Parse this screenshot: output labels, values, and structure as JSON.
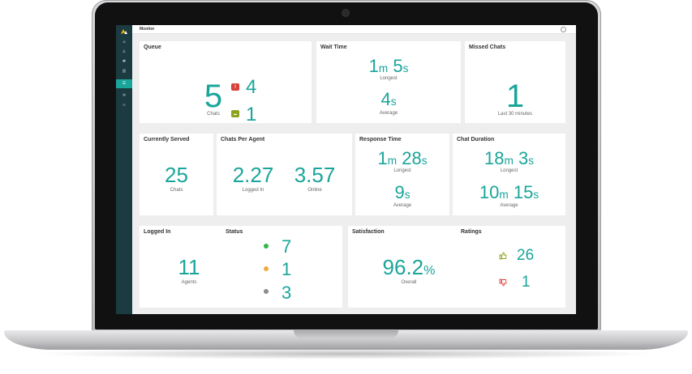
{
  "app": {
    "title": "Monitor"
  },
  "colors": {
    "accent": "#1aa59b",
    "sidebar": "#1b3b40",
    "alert": "#d9413c",
    "chat": "#8ea31d",
    "online": "#2db84b",
    "away": "#f2a93b",
    "offline": "#8c8c8c",
    "like": "#8ea31d",
    "dislike": "#d9413c"
  },
  "sidebar": {
    "items": [
      {
        "icon": "home-icon",
        "glyph": "⌂"
      },
      {
        "icon": "users-icon",
        "glyph": "♙"
      },
      {
        "icon": "gear-icon",
        "glyph": "✱"
      },
      {
        "icon": "chart-icon",
        "glyph": "▥"
      },
      {
        "icon": "monitor-icon",
        "glyph": "☰",
        "active": true
      },
      {
        "icon": "settings-icon",
        "glyph": "✲"
      },
      {
        "icon": "link-icon",
        "glyph": "∞"
      }
    ]
  },
  "queue": {
    "title": "Queue",
    "chats": "5",
    "chats_label": "Chats",
    "alert_count": "4",
    "chat_count": "1",
    "alert_glyph": "!",
    "chat_glyph": "▬"
  },
  "wait_time": {
    "title": "Wait Time",
    "longest_m": "1",
    "longest_s": "5",
    "longest_label": "Longest",
    "average_s": "4",
    "average_label": "Average",
    "m": "m",
    "s": "s"
  },
  "missed": {
    "title": "Missed Chats",
    "value": "1",
    "label": "Last 30 minutes"
  },
  "served": {
    "title": "Currently Served",
    "value": "25",
    "label": "Chats"
  },
  "per_agent": {
    "title": "Chats Per Agent",
    "logged_value": "2.27",
    "logged_label": "Logged In",
    "online_value": "3.57",
    "online_label": "Online"
  },
  "response": {
    "title": "Response Time",
    "longest_m": "1",
    "longest_s": "28",
    "longest_label": "Longest",
    "average_s": "9",
    "average_label": "Average",
    "m": "m",
    "s": "s"
  },
  "duration": {
    "title": "Chat Duration",
    "longest_m": "18",
    "longest_s": "3",
    "longest_label": "Longest",
    "average_m": "10",
    "average_s": "15",
    "average_label": "Average",
    "m": "m",
    "s": "s"
  },
  "logged_in": {
    "title": "Logged In",
    "value": "11",
    "label": "Agents"
  },
  "status": {
    "title": "Status",
    "online": "7",
    "away": "1",
    "offline": "3"
  },
  "satisfaction": {
    "title": "Satisfaction",
    "value": "96.2",
    "unit": "%",
    "label": "Overall"
  },
  "ratings": {
    "title": "Ratings",
    "likes": "26",
    "dislikes": "1"
  }
}
